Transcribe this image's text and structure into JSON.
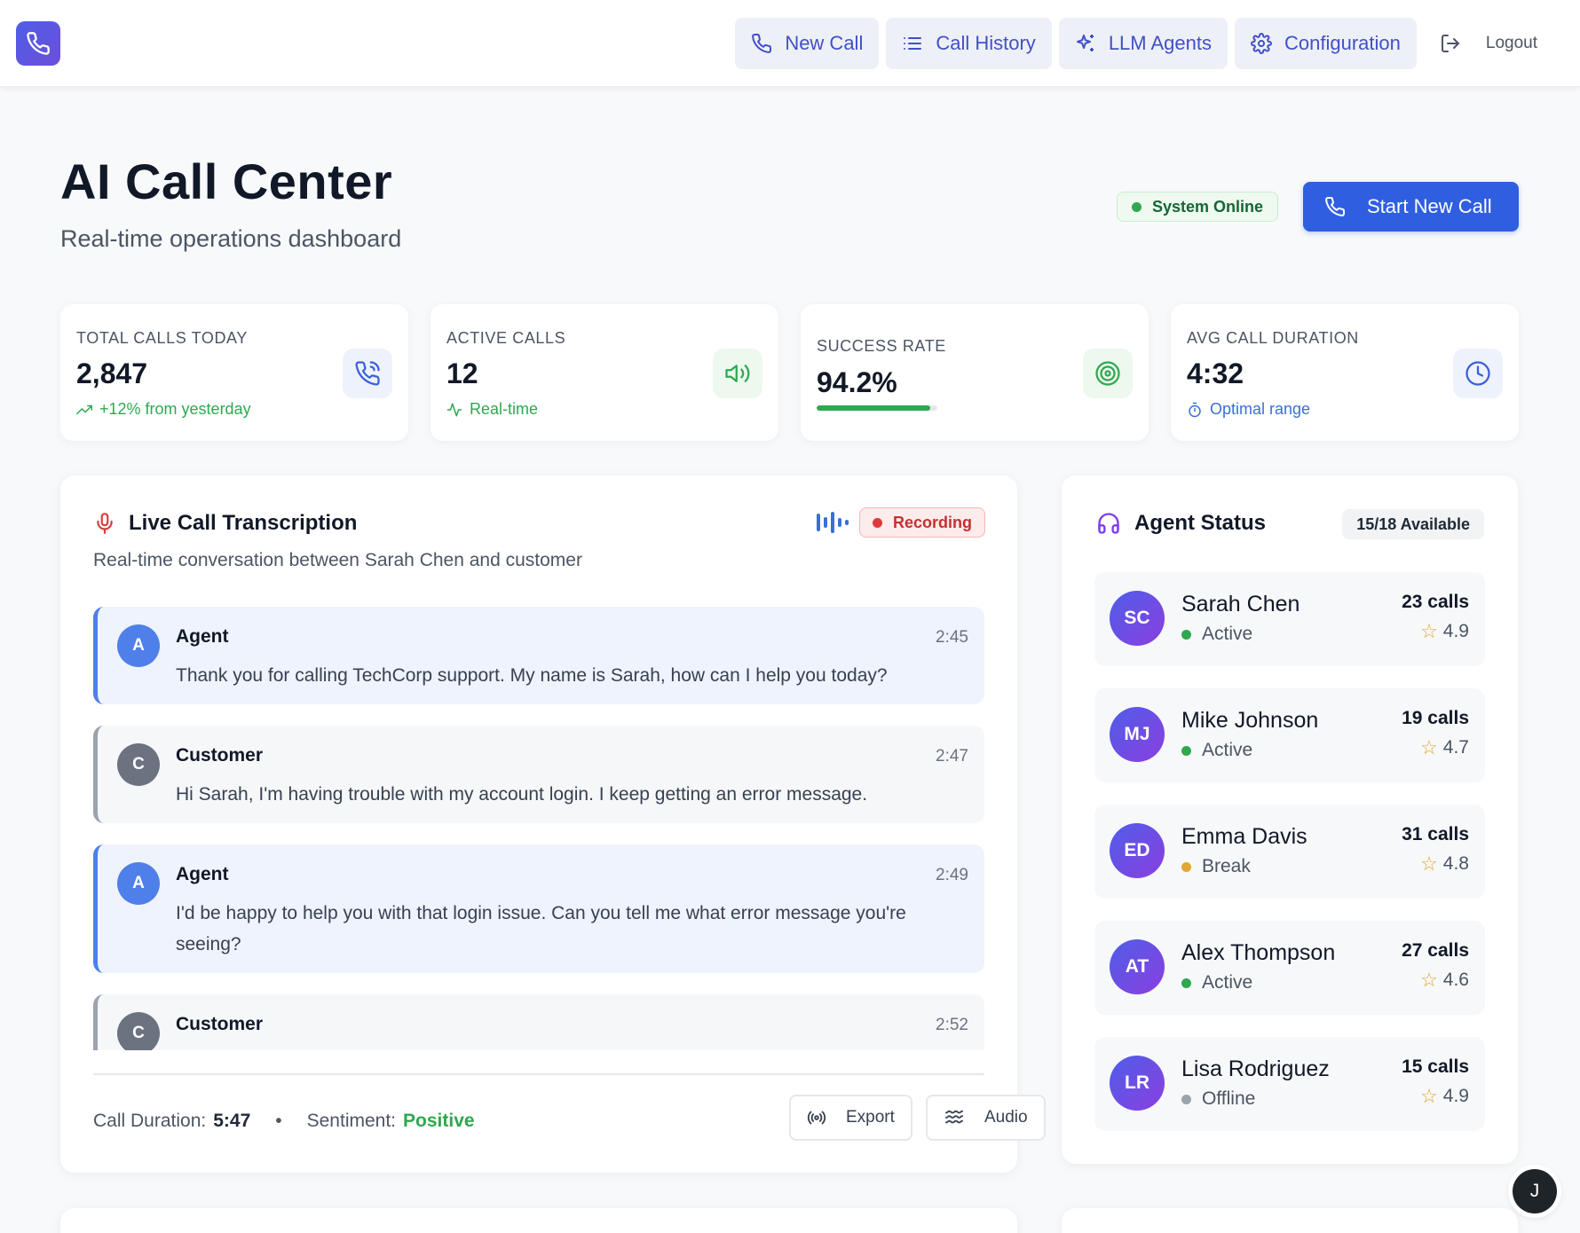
{
  "nav": {
    "items": [
      {
        "label": "New Call",
        "icon": "phone-icon"
      },
      {
        "label": "Call History",
        "icon": "list-icon"
      },
      {
        "label": "LLM Agents",
        "icon": "sparkles-icon"
      },
      {
        "label": "Configuration",
        "icon": "gear-icon"
      }
    ],
    "logout": "Logout"
  },
  "header": {
    "title": "AI Call Center",
    "subtitle": "Real-time operations dashboard",
    "status": "System Online",
    "start_button": "Start New Call"
  },
  "stats": [
    {
      "label": "TOTAL CALLS TODAY",
      "value": "2,847",
      "sub": "+12% from yesterday",
      "icon": "phone-incoming-icon"
    },
    {
      "label": "ACTIVE CALLS",
      "value": "12",
      "sub": "Real-time",
      "icon": "speaker-icon"
    },
    {
      "label": "SUCCESS RATE",
      "value": "94.2%",
      "progress": 0.942,
      "icon": "target-icon"
    },
    {
      "label": "AVG CALL DURATION",
      "value": "4:32",
      "sub": "Optimal range",
      "icon": "clock-icon"
    }
  ],
  "transcription": {
    "title": "Live Call Transcription",
    "subtitle": "Real-time conversation between Sarah Chen and customer",
    "recording": "Recording",
    "messages": [
      {
        "role": "agent",
        "initial": "A",
        "who": "Agent",
        "time": "2:45",
        "text": "Thank you for calling TechCorp support. My name is Sarah, how can I help you today?"
      },
      {
        "role": "cust",
        "initial": "C",
        "who": "Customer",
        "time": "2:47",
        "text": "Hi Sarah, I'm having trouble with my account login. I keep getting an error message."
      },
      {
        "role": "agent",
        "initial": "A",
        "who": "Agent",
        "time": "2:49",
        "text": "I'd be happy to help you with that login issue. Can you tell me what error message you're seeing?"
      },
      {
        "role": "cust",
        "initial": "C",
        "who": "Customer",
        "time": "2:52",
        "text": ""
      }
    ],
    "footer": {
      "duration_label": "Call Duration:",
      "duration": "5:47",
      "separator": "•",
      "sentiment_label": "Sentiment:",
      "sentiment": "Positive",
      "export": "Export",
      "audio": "Audio"
    }
  },
  "agents": {
    "title": "Agent Status",
    "available": "15/18 Available",
    "list": [
      {
        "initials": "SC",
        "name": "Sarah Chen",
        "status": "Active",
        "status_color": "#2fa84f",
        "calls": "23 calls",
        "rating": "4.9"
      },
      {
        "initials": "MJ",
        "name": "Mike Johnson",
        "status": "Active",
        "status_color": "#2fa84f",
        "calls": "19 calls",
        "rating": "4.7"
      },
      {
        "initials": "ED",
        "name": "Emma Davis",
        "status": "Break",
        "status_color": "#e0a82e",
        "calls": "31 calls",
        "rating": "4.8"
      },
      {
        "initials": "AT",
        "name": "Alex Thompson",
        "status": "Active",
        "status_color": "#2fa84f",
        "calls": "27 calls",
        "rating": "4.6"
      },
      {
        "initials": "LR",
        "name": "Lisa Rodriguez",
        "status": "Offline",
        "status_color": "#9ca3af",
        "calls": "15 calls",
        "rating": "4.9"
      }
    ]
  },
  "user": {
    "initial": "J"
  },
  "colors": {
    "accent": "#2f5fe0",
    "success": "#2fa84f",
    "danger": "#c53030",
    "star": "#e0a82e"
  }
}
